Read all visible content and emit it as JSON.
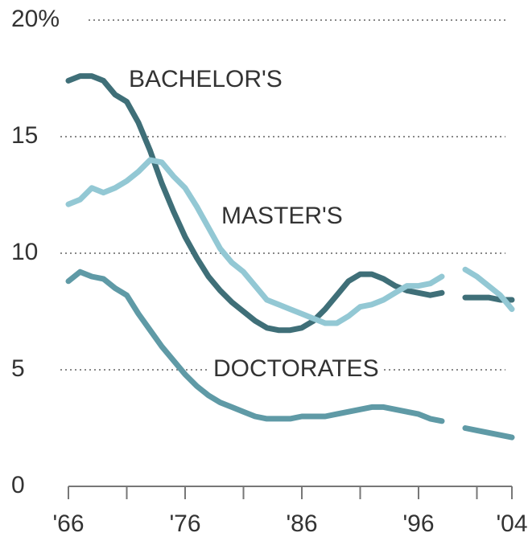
{
  "chart_data": {
    "type": "line",
    "x": [
      1966,
      1967,
      1968,
      1969,
      1970,
      1971,
      1972,
      1973,
      1974,
      1975,
      1976,
      1977,
      1978,
      1979,
      1980,
      1981,
      1982,
      1983,
      1984,
      1985,
      1986,
      1987,
      1988,
      1989,
      1990,
      1991,
      1992,
      1993,
      1994,
      1995,
      1996,
      1997,
      1998,
      1999,
      2000,
      2001,
      2002,
      2003,
      2004
    ],
    "series": [
      {
        "name": "BACHELOR'S",
        "color": "#3f6f78",
        "values": [
          17.4,
          17.6,
          17.6,
          17.4,
          16.8,
          16.5,
          15.6,
          14.4,
          13.0,
          11.8,
          10.7,
          9.8,
          9.0,
          8.4,
          7.9,
          7.5,
          7.1,
          6.8,
          6.7,
          6.7,
          6.8,
          7.1,
          7.6,
          8.2,
          8.8,
          9.1,
          9.1,
          8.9,
          8.6,
          8.4,
          8.3,
          8.2,
          8.3,
          null,
          8.1,
          8.1,
          8.1,
          8.0,
          8.0
        ]
      },
      {
        "name": "MASTER'S",
        "color": "#93c8d4",
        "values": [
          12.1,
          12.3,
          12.8,
          12.6,
          12.8,
          13.1,
          13.5,
          14.0,
          13.9,
          13.3,
          12.8,
          12.0,
          11.1,
          10.2,
          9.6,
          9.2,
          8.6,
          8.0,
          7.8,
          7.6,
          7.4,
          7.2,
          7.0,
          7.0,
          7.3,
          7.7,
          7.8,
          8.0,
          8.3,
          8.6,
          8.6,
          8.7,
          9.0,
          null,
          9.3,
          9.0,
          8.6,
          8.2,
          7.6
        ]
      },
      {
        "name": "DOCTORATES",
        "color": "#5f9aa6",
        "values": [
          8.8,
          9.2,
          9.0,
          8.9,
          8.5,
          8.2,
          7.4,
          6.7,
          6.0,
          5.4,
          4.8,
          4.3,
          3.9,
          3.6,
          3.4,
          3.2,
          3.0,
          2.9,
          2.9,
          2.9,
          3.0,
          3.0,
          3.0,
          3.1,
          3.2,
          3.3,
          3.4,
          3.4,
          3.3,
          3.2,
          3.1,
          2.9,
          2.8,
          null,
          2.5,
          2.4,
          2.3,
          2.2,
          2.1
        ]
      }
    ],
    "xlim": [
      1966,
      2004
    ],
    "xticks": [
      {
        "value": 1966,
        "label": "'66"
      },
      {
        "value": 1976,
        "label": "'76"
      },
      {
        "value": 1986,
        "label": "'86"
      },
      {
        "value": 1996,
        "label": "'96"
      },
      {
        "value": 2004,
        "label": "'04"
      }
    ],
    "xminor_ticks": [
      1971,
      1981,
      1991,
      2001
    ],
    "ylim": [
      0,
      20
    ],
    "yticks": [
      0,
      5,
      10,
      15,
      {
        "value": 20,
        "label": "20%"
      }
    ],
    "grid": true
  }
}
